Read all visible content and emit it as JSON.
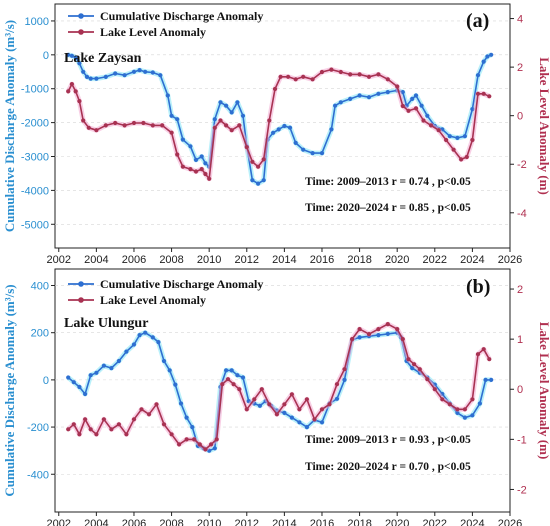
{
  "colors": {
    "discharge": "#2e6fd1",
    "discharge_glow": "#7fe3f5",
    "level": "#a83252",
    "level_glow": "#f2a8d0",
    "left_axis": "#2a8fd0",
    "right_axis": "#b03050"
  },
  "chart_data": [
    {
      "type": "line",
      "panel_label": "(a)",
      "lake": "Lake Zaysan",
      "xlabel": "",
      "ylabel_left": "Cumulative Discharge Anomaly (m³/s)",
      "ylabel_right": "Lake Level Anomaly (m)",
      "xlim": [
        2001.8,
        2026.0
      ],
      "ylim_left": [
        -5700,
        1500
      ],
      "ylim_right": [
        -5.45,
        4.6
      ],
      "x_ticks": [
        2002,
        2004,
        2006,
        2008,
        2010,
        2012,
        2014,
        2016,
        2018,
        2020,
        2022,
        2024,
        2026
      ],
      "y_ticks_left": [
        1000,
        0,
        -1000,
        -2000,
        -3000,
        -4000,
        -5000
      ],
      "y_ticks_right": [
        4,
        2,
        0,
        -2,
        -4
      ],
      "legend": [
        "Cumulative Discharge Anomaly",
        "Lake Level Anomaly"
      ],
      "annotations": [
        "Time: 2009–2013 r = 0.74 , p<0.05",
        "Time: 2020–2024 r = 0.85 , p<0.05"
      ],
      "series": [
        {
          "name": "Cumulative Discharge Anomaly",
          "axis": "left",
          "x": [
            2002.5,
            2002.7,
            2002.9,
            2003.1,
            2003.3,
            2003.5,
            2003.7,
            2004.0,
            2004.5,
            2005.0,
            2005.5,
            2006.0,
            2006.3,
            2006.6,
            2007.0,
            2007.4,
            2007.8,
            2008.0,
            2008.3,
            2008.6,
            2009.0,
            2009.3,
            2009.6,
            2009.8,
            2010.0,
            2010.3,
            2010.6,
            2010.9,
            2011.2,
            2011.5,
            2011.8,
            2012.0,
            2012.3,
            2012.6,
            2012.9,
            2013.1,
            2013.4,
            2013.7,
            2014.0,
            2014.3,
            2014.6,
            2015.0,
            2015.5,
            2016.0,
            2016.5,
            2016.7,
            2017.0,
            2017.5,
            2018.0,
            2018.5,
            2019.0,
            2019.5,
            2020.0,
            2020.3,
            2020.5,
            2020.8,
            2021.0,
            2021.3,
            2021.6,
            2022.0,
            2022.4,
            2022.8,
            2023.2,
            2023.6,
            2024.0,
            2024.3,
            2024.6,
            2024.8,
            2025.0
          ],
          "y": [
            0,
            -30,
            -80,
            -250,
            -500,
            -650,
            -700,
            -700,
            -650,
            -550,
            -600,
            -500,
            -450,
            -500,
            -520,
            -600,
            -1200,
            -1800,
            -1900,
            -2500,
            -2700,
            -3100,
            -3000,
            -3200,
            -3300,
            -1900,
            -1400,
            -1500,
            -1700,
            -1400,
            -1800,
            -2700,
            -3700,
            -3800,
            -3700,
            -2500,
            -2300,
            -2200,
            -2100,
            -2150,
            -2600,
            -2800,
            -2900,
            -2900,
            -2200,
            -1500,
            -1400,
            -1300,
            -1200,
            -1250,
            -1150,
            -1100,
            -1050,
            -1100,
            -1500,
            -1300,
            -1200,
            -1500,
            -1800,
            -2100,
            -2200,
            -2400,
            -2450,
            -2400,
            -1600,
            -600,
            -200,
            -50,
            0
          ]
        },
        {
          "name": "Lake Level Anomaly",
          "axis": "right",
          "x": [
            2002.5,
            2002.7,
            2002.9,
            2003.1,
            2003.3,
            2003.6,
            2004.0,
            2004.5,
            2005.0,
            2005.5,
            2006.0,
            2006.5,
            2007.0,
            2007.5,
            2008.0,
            2008.3,
            2008.6,
            2009.0,
            2009.3,
            2009.6,
            2009.8,
            2010.0,
            2010.3,
            2010.6,
            2010.9,
            2011.2,
            2011.6,
            2012.0,
            2012.3,
            2012.6,
            2012.9,
            2013.2,
            2013.5,
            2013.8,
            2014.2,
            2014.6,
            2015.0,
            2015.5,
            2016.0,
            2016.5,
            2017.0,
            2017.5,
            2018.0,
            2018.5,
            2019.0,
            2019.5,
            2020.0,
            2020.3,
            2020.6,
            2021.0,
            2021.4,
            2021.8,
            2022.2,
            2022.6,
            2023.0,
            2023.4,
            2023.7,
            2024.0,
            2024.3,
            2024.6,
            2024.9
          ],
          "y": [
            1.0,
            1.3,
            1.0,
            0.6,
            -0.2,
            -0.5,
            -0.6,
            -0.4,
            -0.3,
            -0.4,
            -0.3,
            -0.3,
            -0.4,
            -0.4,
            -0.7,
            -1.6,
            -2.1,
            -2.2,
            -2.3,
            -2.2,
            -2.4,
            -2.6,
            -0.5,
            -0.2,
            -0.4,
            -0.6,
            -0.4,
            -1.3,
            -1.9,
            -2.1,
            -1.8,
            -0.2,
            1.1,
            1.6,
            1.6,
            1.5,
            1.6,
            1.5,
            1.8,
            1.9,
            1.8,
            1.7,
            1.7,
            1.6,
            1.7,
            1.5,
            1.2,
            0.4,
            0.2,
            0.3,
            -0.2,
            -0.4,
            -0.6,
            -1.0,
            -1.4,
            -1.8,
            -1.7,
            -1.0,
            0.9,
            0.9,
            0.8
          ]
        }
      ]
    },
    {
      "type": "line",
      "panel_label": "(b)",
      "lake": "Lake Ulungur",
      "xlabel": "",
      "ylabel_left": "Cumulative Discharge Anomaly (m³/s)",
      "ylabel_right": "Lake Level Anomaly (m)",
      "xlim": [
        2001.8,
        2026.0
      ],
      "ylim_left": [
        -560,
        470
      ],
      "ylim_right": [
        -2.45,
        2.4
      ],
      "x_ticks": [
        2002,
        2004,
        2006,
        2008,
        2010,
        2012,
        2014,
        2016,
        2018,
        2020,
        2022,
        2024,
        2026
      ],
      "y_ticks_left": [
        400,
        200,
        0,
        -200,
        -400
      ],
      "y_ticks_right": [
        2,
        1,
        0,
        -1,
        -2
      ],
      "legend": [
        "Cumulative Discharge Anomaly",
        "Lake Level Anomaly"
      ],
      "annotations": [
        "Time: 2009–2013 r = 0.93 , p<0.05",
        "Time: 2020–2024 r = 0.70 , p<0.05"
      ],
      "series": [
        {
          "name": "Cumulative Discharge Anomaly",
          "axis": "left",
          "x": [
            2002.5,
            2002.8,
            2003.1,
            2003.4,
            2003.7,
            2004.0,
            2004.4,
            2004.8,
            2005.2,
            2005.6,
            2006.0,
            2006.3,
            2006.6,
            2007.0,
            2007.3,
            2007.6,
            2007.9,
            2008.2,
            2008.5,
            2008.8,
            2009.1,
            2009.4,
            2009.7,
            2010.0,
            2010.3,
            2010.6,
            2010.9,
            2011.2,
            2011.5,
            2011.8,
            2012.1,
            2012.4,
            2012.7,
            2013.0,
            2013.3,
            2013.6,
            2014.0,
            2014.4,
            2014.8,
            2015.2,
            2015.6,
            2016.0,
            2016.4,
            2016.8,
            2017.2,
            2017.6,
            2018.0,
            2018.5,
            2019.0,
            2019.5,
            2020.0,
            2020.2,
            2020.5,
            2020.8,
            2021.2,
            2021.6,
            2022.0,
            2022.4,
            2022.8,
            2023.2,
            2023.6,
            2024.0,
            2024.4,
            2024.7,
            2025.0
          ],
          "y": [
            10,
            -10,
            -30,
            -60,
            20,
            30,
            60,
            50,
            80,
            120,
            150,
            190,
            200,
            180,
            160,
            80,
            40,
            -20,
            -100,
            -160,
            -200,
            -280,
            -290,
            -300,
            -290,
            -30,
            40,
            40,
            20,
            10,
            -90,
            -100,
            -110,
            -90,
            -110,
            -130,
            -140,
            -160,
            -180,
            -200,
            -170,
            -180,
            -100,
            -80,
            0,
            170,
            180,
            185,
            190,
            195,
            200,
            180,
            80,
            50,
            30,
            10,
            -20,
            -60,
            -100,
            -140,
            -160,
            -150,
            -100,
            0,
            0
          ]
        },
        {
          "name": "Lake Level Anomaly",
          "axis": "right",
          "x": [
            2002.5,
            2002.8,
            2003.1,
            2003.4,
            2003.7,
            2004.0,
            2004.4,
            2004.8,
            2005.2,
            2005.6,
            2006.0,
            2006.4,
            2006.8,
            2007.2,
            2007.6,
            2008.0,
            2008.4,
            2008.8,
            2009.2,
            2009.5,
            2009.8,
            2010.1,
            2010.4,
            2010.7,
            2011.0,
            2011.3,
            2011.6,
            2012.0,
            2012.4,
            2012.8,
            2013.2,
            2013.6,
            2014.0,
            2014.4,
            2014.8,
            2015.2,
            2015.6,
            2016.0,
            2016.4,
            2016.8,
            2017.2,
            2017.6,
            2018.0,
            2018.5,
            2019.0,
            2019.5,
            2020.0,
            2020.3,
            2020.6,
            2020.9,
            2021.2,
            2021.6,
            2022.0,
            2022.4,
            2022.8,
            2023.2,
            2023.6,
            2024.0,
            2024.3,
            2024.6,
            2024.9
          ],
          "y": [
            -0.8,
            -0.7,
            -0.9,
            -0.6,
            -0.8,
            -0.9,
            -0.6,
            -0.8,
            -0.7,
            -0.9,
            -0.6,
            -0.4,
            -0.5,
            -0.3,
            -0.7,
            -0.9,
            -1.1,
            -1.0,
            -1.0,
            -1.1,
            -1.2,
            -1.1,
            -1.0,
            0.1,
            0.2,
            0.1,
            0.0,
            -0.4,
            -0.2,
            0.0,
            -0.3,
            -0.5,
            -0.3,
            -0.1,
            -0.4,
            -0.2,
            -0.6,
            -0.4,
            -0.3,
            0.1,
            0.4,
            1.0,
            1.2,
            1.1,
            1.2,
            1.3,
            1.2,
            1.0,
            0.6,
            0.5,
            0.4,
            0.2,
            0.0,
            -0.2,
            -0.3,
            -0.4,
            -0.4,
            -0.2,
            0.7,
            0.8,
            0.6
          ]
        }
      ]
    }
  ]
}
